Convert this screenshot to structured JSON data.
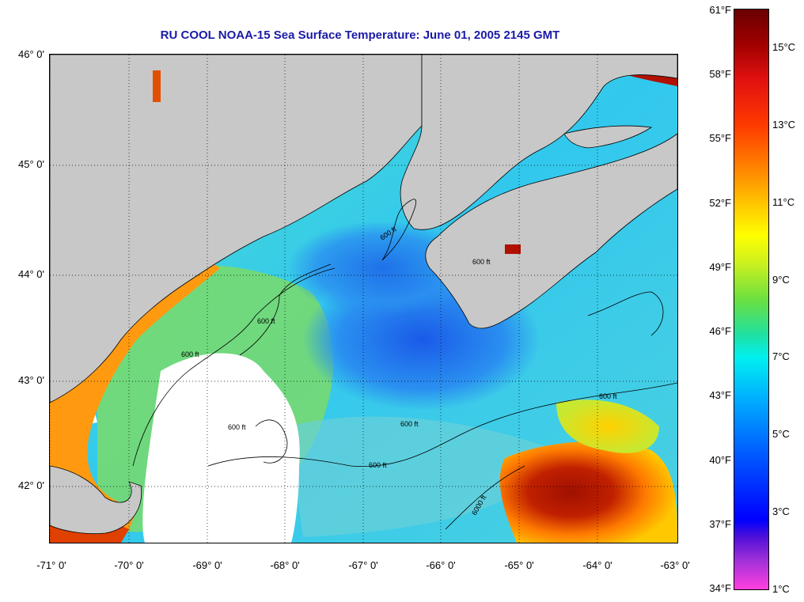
{
  "title": "RU COOL  NOAA-15  Sea Surface Temperature:  June 01, 2005 2145 GMT",
  "y_axis_labels": [
    "46° 0'",
    "45° 0'",
    "44° 0'",
    "43° 0'",
    "42° 0'"
  ],
  "x_axis_labels": [
    "-71° 0'",
    "-70° 0'",
    "-69° 0'",
    "-68° 0'",
    "-67° 0'",
    "-66° 0'",
    "-65° 0'",
    "-64° 0'",
    "-63° 0'"
  ],
  "colorbar": {
    "fahrenheit": [
      "61°F",
      "58°F",
      "55°F",
      "52°F",
      "49°F",
      "46°F",
      "43°F",
      "40°F",
      "37°F",
      "34°F"
    ],
    "celsius": [
      "15°C",
      "13°C",
      "11°C",
      "9°C",
      "7°C",
      "5°C",
      "3°C",
      "1°C"
    ]
  },
  "contours": {
    "label": "600 ft",
    "deep_label": "6000 ft",
    "small_label": "600 ft"
  },
  "colors": {
    "land": "#c8c8c8",
    "cloud": "#ffffff",
    "cold": "#1e6cf0",
    "mid": "#38d8e8",
    "warm": "#ff9a10",
    "hot": "#9a0000",
    "title": "#1a1aa8"
  }
}
